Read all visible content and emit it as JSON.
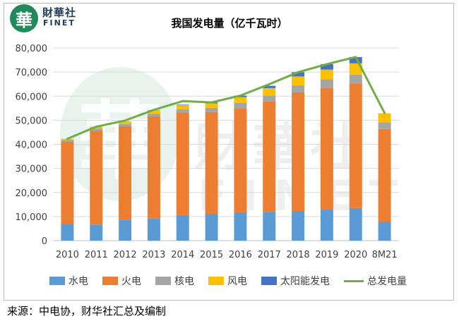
{
  "logo": {
    "badge": "華",
    "cn": "財華社",
    "en": "FINET"
  },
  "watermark": {
    "badge": "華",
    "cn": "財華社",
    "en": "FINET"
  },
  "source": "来源：中电协，财华社汇总及编制",
  "chart_data": {
    "type": "bar",
    "title": "我国发电量（亿千瓦时）",
    "xlabel": "",
    "ylabel": "",
    "ylim": [
      0,
      80000
    ],
    "yticks": [
      0,
      10000,
      20000,
      30000,
      40000,
      50000,
      60000,
      70000,
      80000
    ],
    "ytick_labels": [
      "0",
      "10,000",
      "20,000",
      "30,000",
      "40,000",
      "50,000",
      "60,000",
      "70,000",
      "80,000"
    ],
    "stacked": true,
    "categories": [
      "2010",
      "2011",
      "2012",
      "2013",
      "2014",
      "2015",
      "2016",
      "2017",
      "2018",
      "2019",
      "2020",
      "8M21"
    ],
    "series": [
      {
        "name": "水电",
        "color": "#5b9bd5",
        "values": [
          6867,
          6681,
          8556,
          9116,
          10601,
          11127,
          11748,
          11947,
          12321,
          13021,
          13552,
          7764
        ]
      },
      {
        "name": "火电",
        "color": "#ed7d31",
        "values": [
          34166,
          39003,
          38928,
          42470,
          42686,
          42307,
          43273,
          45877,
          49231,
          50465,
          51743,
          38585
        ]
      },
      {
        "name": "核电",
        "color": "#a5a5a5",
        "values": [
          747,
          872,
          983,
          1116,
          1332,
          1714,
          2132,
          2481,
          2950,
          3487,
          3662,
          2716
        ]
      },
      {
        "name": "风电",
        "color": "#ffc000",
        "values": [
          494,
          741,
          1030,
          1383,
          1598,
          1856,
          2409,
          3034,
          3660,
          4057,
          4665,
          3828
        ]
      },
      {
        "name": "太阳能发电",
        "color": "#4472c4",
        "values": [
          1,
          6,
          36,
          84,
          235,
          395,
          665,
          967,
          1775,
          2240,
          2611,
          0
        ]
      }
    ],
    "line": {
      "name": "总发电量",
      "color": "#70ad47",
      "values": [
        42278,
        47306,
        49865,
        54316,
        57945,
        57399,
        60228,
        64951,
        69947,
        73266,
        76236,
        53000
      ]
    },
    "grid": true,
    "legend_position": "bottom"
  }
}
